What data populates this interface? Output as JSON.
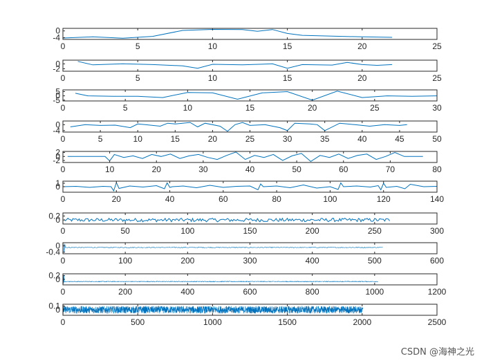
{
  "figure": {
    "background": "#ffffff",
    "axes_color": "#262626",
    "line_color": "#0072bd",
    "watermark": "CSDN @海神之光"
  },
  "chart_data": [
    {
      "type": "line",
      "xlim": [
        0,
        25
      ],
      "ylim": [
        -5,
        1.5
      ],
      "xticks": [
        "0",
        "5",
        "10",
        "15",
        "20",
        "25"
      ],
      "yticks": [
        "0",
        "-4"
      ],
      "ytick_values": [
        0,
        -4
      ],
      "x": [
        0,
        2,
        4,
        6,
        8,
        10,
        12,
        13,
        14,
        15,
        16,
        18,
        20,
        22
      ],
      "values": [
        -4.2,
        -3.5,
        -4.3,
        -3.2,
        0.3,
        0.9,
        0.8,
        -0.2,
        0.8,
        -1.5,
        -2.6,
        -3.1,
        -3.5,
        -3.8
      ]
    },
    {
      "type": "line",
      "xlim": [
        0,
        25
      ],
      "ylim": [
        -3,
        1.5
      ],
      "xticks": [
        "0",
        "5",
        "10",
        "15",
        "20",
        "25"
      ],
      "yticks": [
        "0",
        "-2"
      ],
      "ytick_values": [
        0,
        -2
      ],
      "x": [
        1,
        2,
        4,
        6,
        8,
        9,
        10,
        12,
        14,
        15,
        16,
        18,
        19,
        20,
        21,
        22
      ],
      "values": [
        1.0,
        -0.4,
        0.0,
        -0.3,
        -0.8,
        -1.8,
        -0.2,
        -0.4,
        0.0,
        -1.8,
        -0.3,
        -0.5,
        0.6,
        -0.3,
        -0.6,
        -0.3
      ]
    },
    {
      "type": "line",
      "xlim": [
        0,
        30
      ],
      "ylim": [
        -6,
        7
      ],
      "xticks": [
        "0",
        "5",
        "10",
        "15",
        "20",
        "25",
        "30"
      ],
      "yticks": [
        "5",
        "0",
        "-5"
      ],
      "ytick_values": [
        5,
        0,
        -5
      ],
      "x": [
        1,
        2,
        4,
        6,
        8,
        10,
        12,
        14,
        16,
        18,
        20,
        22,
        24,
        26,
        28,
        30
      ],
      "values": [
        3,
        0,
        -0.5,
        -0.5,
        -2,
        4,
        3.5,
        -4,
        3.5,
        5,
        -5,
        5.5,
        -2,
        0,
        -0.5,
        0
      ]
    },
    {
      "type": "line",
      "xlim": [
        0,
        50
      ],
      "ylim": [
        -5,
        2.5
      ],
      "xticks": [
        "0",
        "5",
        "10",
        "15",
        "20",
        "25",
        "30",
        "35",
        "40",
        "45",
        "50"
      ],
      "yticks": [
        "0",
        "-4"
      ],
      "ytick_values": [
        0,
        -4
      ],
      "x": [
        1,
        3,
        5,
        7,
        9,
        10,
        11,
        13,
        14,
        15,
        17,
        18,
        19,
        21,
        22,
        23,
        24,
        25,
        27,
        29,
        30,
        31,
        33,
        34,
        35,
        37,
        39,
        41,
        43,
        45,
        46
      ],
      "values": [
        -1.5,
        0,
        -0.5,
        -0.3,
        -2,
        0.5,
        0,
        -1,
        1,
        0.5,
        1.5,
        -1.5,
        1,
        -1,
        -4.5,
        0,
        1.5,
        -0.5,
        0,
        -2,
        -4,
        1,
        0.5,
        0,
        -4,
        1,
        0,
        -1,
        0,
        -0.5,
        0
      ]
    },
    {
      "type": "line",
      "xlim": [
        0,
        80
      ],
      "ylim": [
        -3,
        2.5
      ],
      "xticks": [
        "0",
        "10",
        "20",
        "30",
        "40",
        "50",
        "60",
        "70",
        "80"
      ],
      "yticks": [
        "2",
        "0",
        "-2"
      ],
      "ytick_values": [
        2,
        0,
        -2
      ],
      "x": [
        1,
        5,
        9,
        10,
        11,
        13,
        15,
        17,
        19,
        21,
        23,
        25,
        27,
        29,
        31,
        33,
        35,
        37,
        39,
        41,
        43,
        45,
        47,
        49,
        51,
        53,
        55,
        57,
        59,
        61,
        63,
        65,
        67,
        69,
        71,
        73,
        77
      ],
      "values": [
        0,
        0,
        0,
        -2.2,
        1,
        -0.5,
        0.3,
        -1,
        1,
        0,
        1.2,
        -1,
        0.3,
        1,
        -0.5,
        -1.5,
        0.5,
        2.2,
        -1.5,
        0.5,
        -0.5,
        1,
        -2,
        0.3,
        1.5,
        -2.5,
        0.5,
        -0.5,
        1.2,
        -1,
        0.5,
        1.2,
        -1.5,
        0,
        2,
        0,
        0
      ]
    },
    {
      "type": "line",
      "xlim": [
        0,
        140
      ],
      "ylim": [
        -1.6,
        1.6
      ],
      "xticks": [
        "0",
        "20",
        "40",
        "60",
        "80",
        "100",
        "120",
        "140"
      ],
      "yticks": [
        "1",
        "0"
      ],
      "ytick_values": [
        1,
        0
      ],
      "x": [
        0,
        5,
        10,
        15,
        18,
        19,
        20,
        21,
        25,
        30,
        35,
        38,
        39,
        40,
        41,
        45,
        50,
        55,
        60,
        65,
        70,
        73,
        74,
        75,
        80,
        85,
        90,
        95,
        100,
        103,
        104,
        105,
        110,
        115,
        118,
        119,
        120,
        121,
        125,
        128,
        130,
        135,
        140
      ],
      "values": [
        0,
        0.1,
        -0.2,
        0.1,
        0,
        -1.2,
        1.2,
        -0.5,
        0.2,
        -0.1,
        0.3,
        -0.6,
        1.1,
        -0.2,
        0,
        0.2,
        -0.3,
        0.4,
        -0.2,
        0.1,
        0.2,
        -0.9,
        0.8,
        0,
        0.2,
        -0.3,
        0.5,
        -0.4,
        0,
        -0.8,
        1.1,
        0,
        0.2,
        -0.1,
        0.3,
        -0.9,
        1.0,
        -0.2,
        0.1,
        -0.6,
        0.7,
        0,
        0.1
      ]
    },
    {
      "type": "line",
      "xlim": [
        0,
        300
      ],
      "ylim": [
        -0.2,
        0.35
      ],
      "xticks": [
        "0",
        "50",
        "100",
        "150",
        "200",
        "250",
        "300"
      ],
      "yticks": [
        "0.2",
        "0"
      ],
      "ytick_values": [
        0.2,
        0
      ],
      "n": 262,
      "noise_amplitude": 0.09
    },
    {
      "type": "line",
      "xlim": [
        0,
        600
      ],
      "ylim": [
        -0.5,
        0.2
      ],
      "xticks": [
        "0",
        "100",
        "200",
        "300",
        "400",
        "500",
        "600"
      ],
      "yticks": [
        "0",
        "-0.4"
      ],
      "ytick_values": [
        0,
        -0.4
      ],
      "n": 513,
      "noise_amplitude": 0.03,
      "offset": -0.1
    },
    {
      "type": "line",
      "xlim": [
        0,
        1200
      ],
      "ylim": [
        -0.3,
        0.3
      ],
      "xticks": [
        "0",
        "200",
        "400",
        "600",
        "800",
        "1000",
        "1200"
      ],
      "yticks": [
        "0.2",
        "0"
      ],
      "ytick_values": [
        0.2,
        0
      ],
      "n": 1011,
      "noise_amplitude": 0.02,
      "offset": -0.12
    },
    {
      "type": "line",
      "xlim": [
        0,
        2500
      ],
      "ylim": [
        -0.15,
        0.15
      ],
      "xticks": [
        "0",
        "500",
        "1000",
        "1500",
        "2000",
        "2500"
      ],
      "yticks": [
        "0.1",
        "0"
      ],
      "ytick_values": [
        0.1,
        0
      ],
      "n": 2004,
      "noise_amplitude": 0.1,
      "offset": 0
    }
  ]
}
